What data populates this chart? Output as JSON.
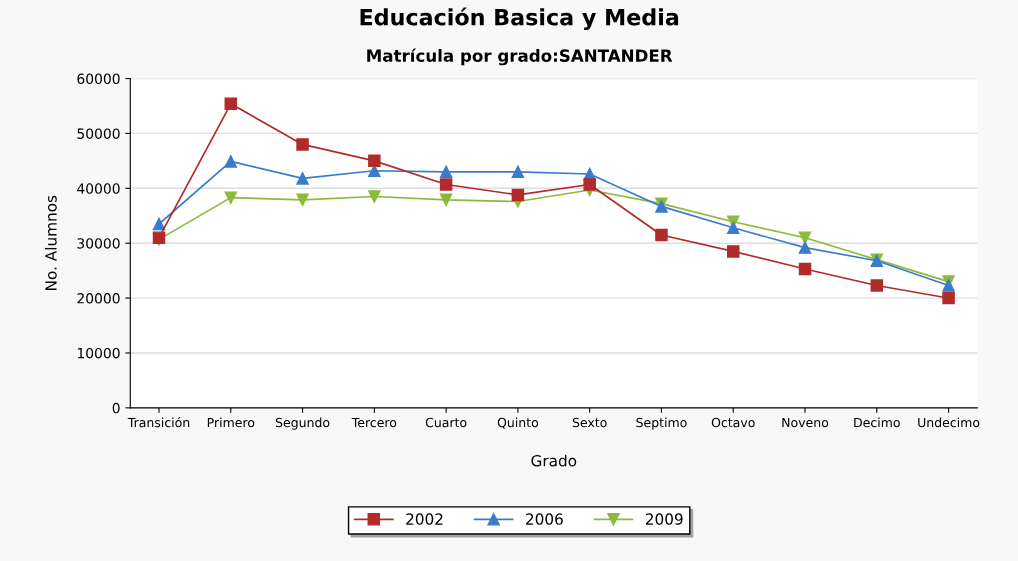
{
  "chart_data": {
    "type": "line",
    "title": "Educación Basica y Media",
    "subtitle": "Matrícula por grado:SANTANDER",
    "xlabel": "Grado",
    "ylabel": "No. Alumnos",
    "categories": [
      "Transición",
      "Primero",
      "Segundo",
      "Tercero",
      "Cuarto",
      "Quinto",
      "Sexto",
      "Septimo",
      "Octavo",
      "Noveno",
      "Decimo",
      "Undecimo"
    ],
    "series": [
      {
        "name": "2002",
        "color": "#b22b2b",
        "marker": "square",
        "values": [
          31000,
          55400,
          48000,
          45000,
          40700,
          38800,
          40700,
          31500,
          28500,
          25300,
          22300,
          20000
        ]
      },
      {
        "name": "2006",
        "color": "#3a7ccc",
        "marker": "triangle",
        "values": [
          33500,
          44900,
          41800,
          43200,
          43000,
          43000,
          42600,
          36700,
          32800,
          29200,
          26800,
          22300
        ]
      },
      {
        "name": "2009",
        "color": "#8cba3a",
        "marker": "triangle_down",
        "values": [
          30700,
          38300,
          37900,
          38500,
          37900,
          37600,
          39700,
          37200,
          33900,
          31000,
          27000,
          23000
        ]
      }
    ],
    "ylim": [
      0,
      60000
    ],
    "yticks": [
      0,
      10000,
      20000,
      30000,
      40000,
      50000,
      60000
    ],
    "grid": "y",
    "legend": "bottom",
    "line_style": "solid"
  }
}
